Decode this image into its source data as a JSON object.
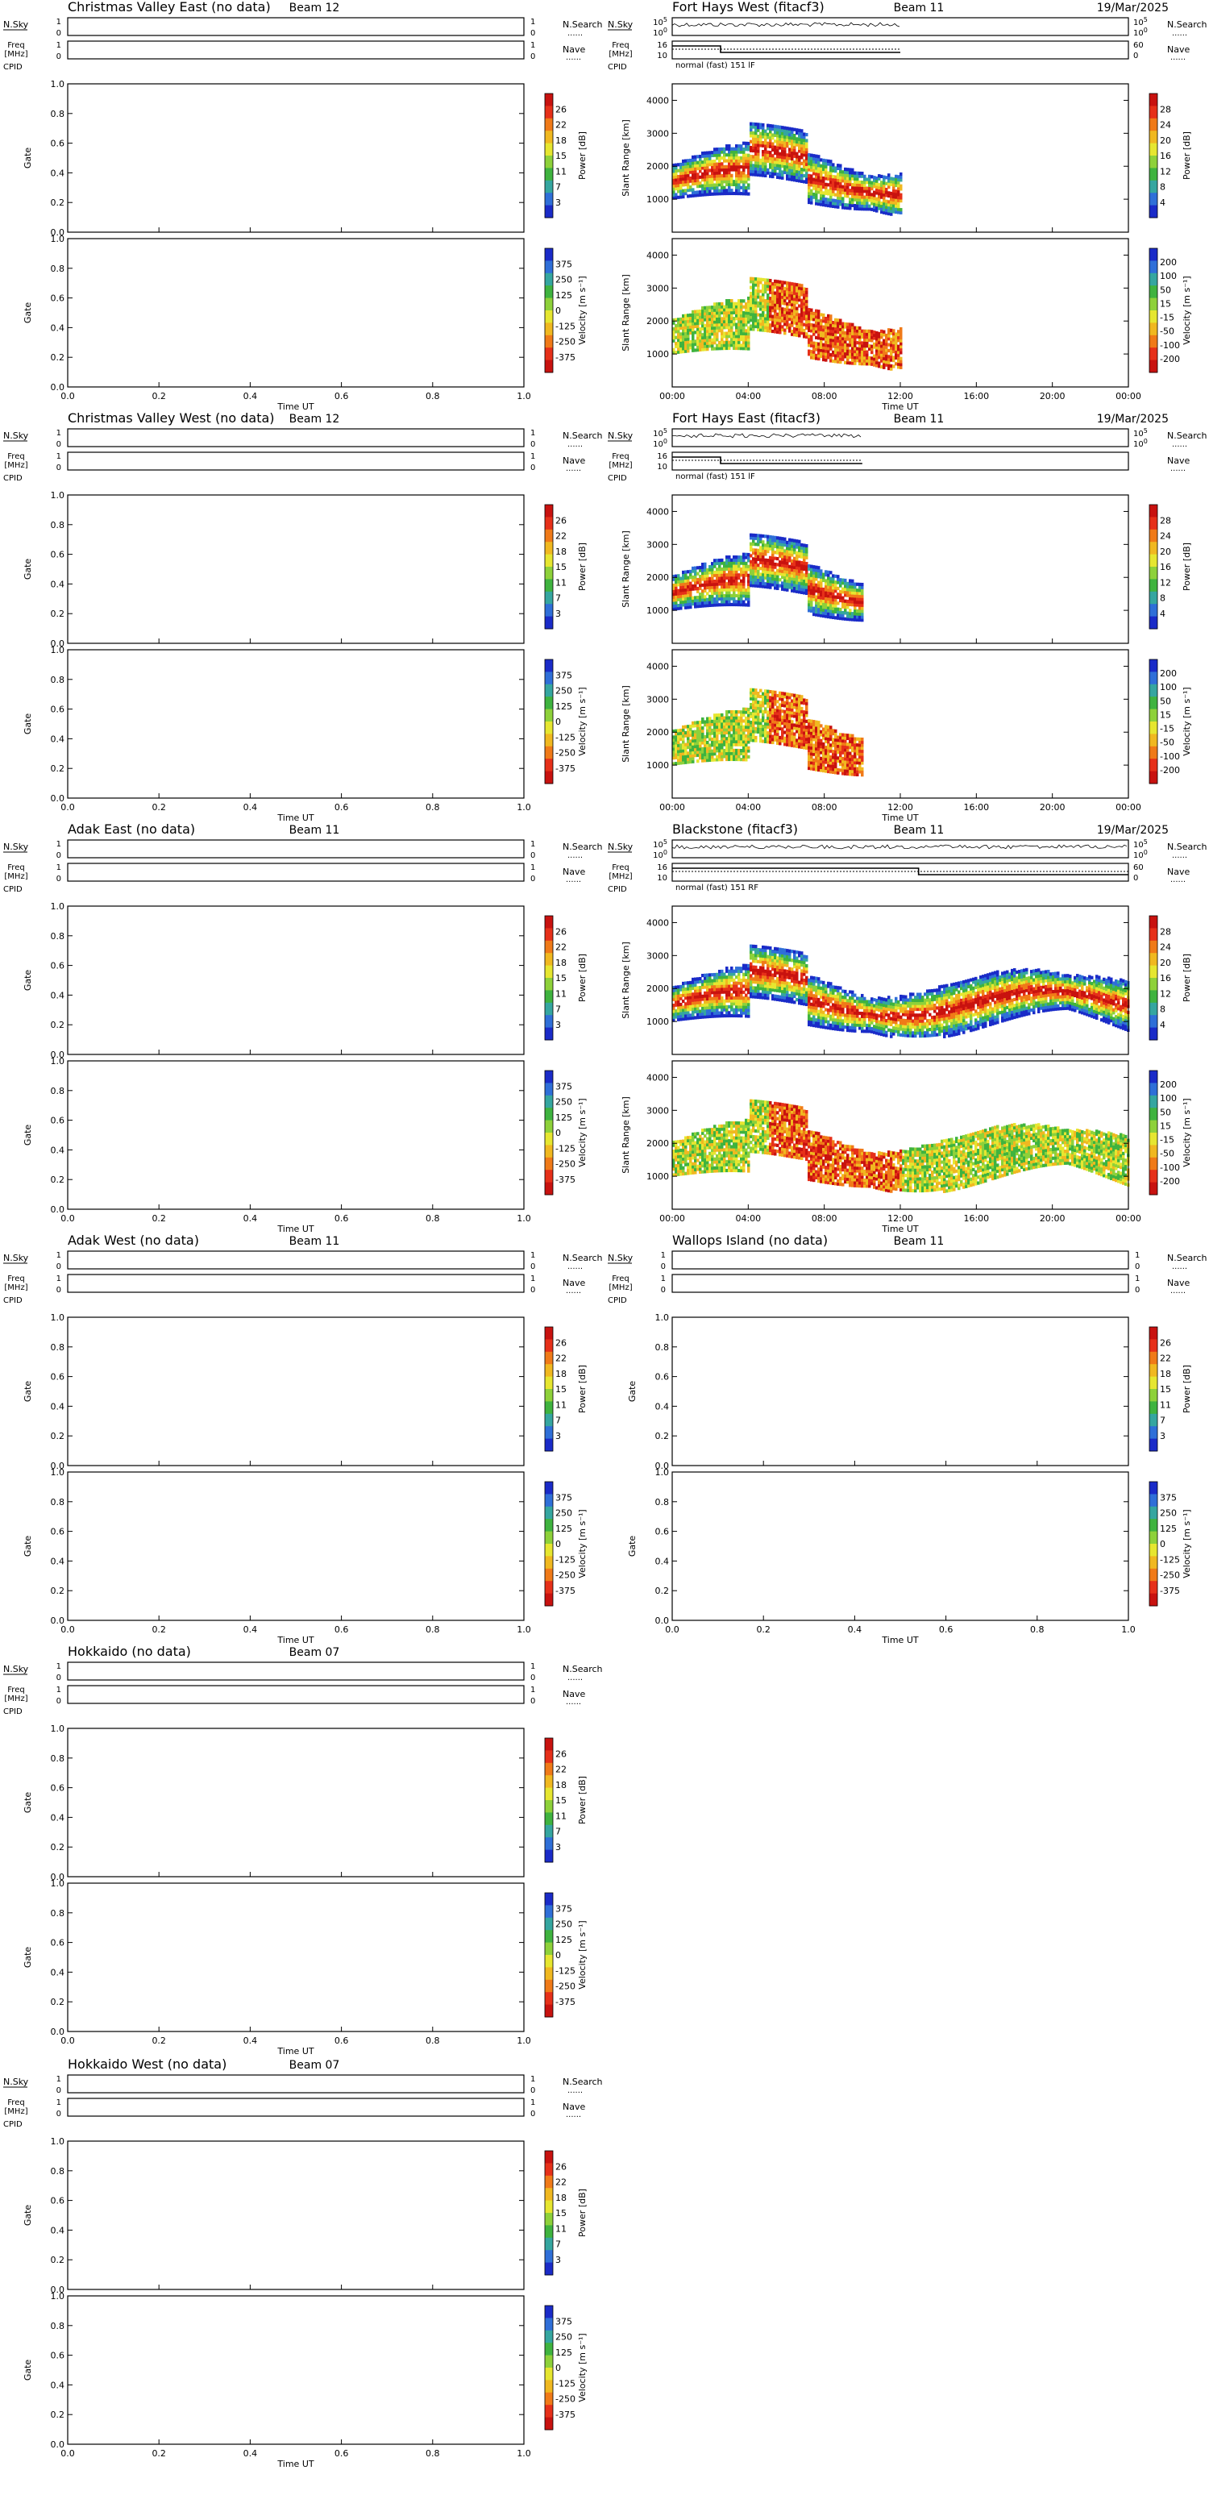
{
  "labels": {
    "nsky": [
      "N.Sky",
      "N.Search"
    ],
    "freq": [
      "Freq",
      "[MHz]",
      "Nave"
    ],
    "cpid": "CPID",
    "gate": "Gate",
    "slant": "Slant Range [km]",
    "power": "Power [dB]",
    "velocity": "Velocity [m s⁻¹]",
    "time": "Time UT",
    "dots": "......"
  },
  "colors": {
    "power": [
      "#1a2bc8",
      "#2f6fd8",
      "#35a6a0",
      "#3fb33f",
      "#8ed13a",
      "#e6e630",
      "#f0b820",
      "#f07a18",
      "#e63019",
      "#c8120f"
    ],
    "velocity": [
      "#1a2bc8",
      "#2f6fd8",
      "#35a6a0",
      "#3fb33f",
      "#8ed13a",
      "#e6e630",
      "#f0b820",
      "#f07a18",
      "#e63019",
      "#c8120f"
    ]
  },
  "chart_data": [
    {
      "type": "heatmap",
      "title": "Christmas Valley East (no data)",
      "beam": "Beam 12",
      "date": "",
      "has_data": false,
      "power_ticks": [
        "26",
        "22",
        "18",
        "15",
        "11",
        "7",
        "3"
      ],
      "velocity_ticks": [
        "375",
        "250",
        "125",
        "0",
        "-125",
        "-250",
        "-375"
      ],
      "y_ticks": [
        "0.0",
        "0.2",
        "0.4",
        "0.6",
        "0.8",
        "1.0"
      ],
      "x_ticks": [
        "0.0",
        "0.2",
        "0.4",
        "0.6",
        "0.8",
        "1.0"
      ],
      "show_xticks": true
    },
    {
      "type": "heatmap",
      "title": "Fort Hays West (fitacf3)",
      "beam": "Beam 11",
      "date": "19/Mar/2025",
      "has_data": true,
      "mode": "normal (fast) 151 lF",
      "noise_ticks": [
        "10^5",
        "10^0"
      ],
      "freq_ticks": [
        "16",
        "10"
      ],
      "nave_ticks": [
        "60",
        "0"
      ],
      "power_ticks": [
        "28",
        "24",
        "20",
        "16",
        "12",
        "8",
        "4"
      ],
      "velocity_ticks": [
        "200",
        "100",
        "50",
        "15",
        "-15",
        "-50",
        "-100",
        "-200"
      ],
      "y_ticks": [
        "1000",
        "2000",
        "3000",
        "4000"
      ],
      "x_ticks": [
        "00:00",
        "04:00",
        "08:00",
        "12:00",
        "16:00",
        "20:00",
        "00:00"
      ],
      "show_xticks": true,
      "data_end_hour": 12
    },
    {
      "type": "heatmap",
      "title": "Christmas Valley West (no data)",
      "beam": "Beam 12",
      "date": "",
      "has_data": false,
      "power_ticks": [
        "26",
        "22",
        "18",
        "15",
        "11",
        "7",
        "3"
      ],
      "velocity_ticks": [
        "375",
        "250",
        "125",
        "0",
        "-125",
        "-250",
        "-375"
      ],
      "y_ticks": [
        "0.0",
        "0.2",
        "0.4",
        "0.6",
        "0.8",
        "1.0"
      ],
      "x_ticks": [
        "0.0",
        "0.2",
        "0.4",
        "0.6",
        "0.8",
        "1.0"
      ],
      "show_xticks": true
    },
    {
      "type": "heatmap",
      "title": "Fort Hays East (fitacf3)",
      "beam": "Beam 11",
      "date": "19/Mar/2025",
      "has_data": true,
      "mode": "normal (fast) 151 lF",
      "noise_ticks": [
        "10^5",
        "10^0"
      ],
      "freq_ticks": [
        "16",
        "10"
      ],
      "nave_ticks": [],
      "power_ticks": [
        "28",
        "24",
        "20",
        "16",
        "12",
        "8",
        "4"
      ],
      "velocity_ticks": [
        "200",
        "100",
        "50",
        "15",
        "-15",
        "-50",
        "-100",
        "-200"
      ],
      "y_ticks": [
        "1000",
        "2000",
        "3000",
        "4000"
      ],
      "x_ticks": [
        "00:00",
        "04:00",
        "08:00",
        "12:00",
        "16:00",
        "20:00",
        "00:00"
      ],
      "show_xticks": true,
      "data_end_hour": 10
    },
    {
      "type": "heatmap",
      "title": "Adak East (no data)",
      "beam": "Beam 11",
      "date": "",
      "has_data": false,
      "power_ticks": [
        "26",
        "22",
        "18",
        "15",
        "11",
        "7",
        "3"
      ],
      "velocity_ticks": [
        "375",
        "250",
        "125",
        "0",
        "-125",
        "-250",
        "-375"
      ],
      "y_ticks": [
        "0.0",
        "0.2",
        "0.4",
        "0.6",
        "0.8",
        "1.0"
      ],
      "x_ticks": [
        "0.0",
        "0.2",
        "0.4",
        "0.6",
        "0.8",
        "1.0"
      ],
      "show_xticks": true
    },
    {
      "type": "heatmap",
      "title": "Blackstone (fitacf3)",
      "beam": "Beam 11",
      "date": "19/Mar/2025",
      "has_data": true,
      "mode": "normal (fast) 151 RF",
      "noise_ticks": [
        "10^5",
        "10^0"
      ],
      "freq_ticks": [
        "16",
        "10"
      ],
      "nave_ticks": [
        "60",
        "0"
      ],
      "power_ticks": [
        "28",
        "24",
        "20",
        "16",
        "12",
        "8",
        "4"
      ],
      "velocity_ticks": [
        "200",
        "100",
        "50",
        "15",
        "-15",
        "-50",
        "-100",
        "-200"
      ],
      "y_ticks": [
        "1000",
        "2000",
        "3000",
        "4000"
      ],
      "x_ticks": [
        "00:00",
        "04:00",
        "08:00",
        "12:00",
        "16:00",
        "20:00",
        "00:00"
      ],
      "show_xticks": true,
      "data_end_hour": 24
    },
    {
      "type": "heatmap",
      "title": "Adak West (no data)",
      "beam": "Beam 11",
      "date": "",
      "has_data": false,
      "power_ticks": [
        "26",
        "22",
        "18",
        "15",
        "11",
        "7",
        "3"
      ],
      "velocity_ticks": [
        "375",
        "250",
        "125",
        "0",
        "-125",
        "-250",
        "-375"
      ],
      "y_ticks": [
        "0.0",
        "0.2",
        "0.4",
        "0.6",
        "0.8",
        "1.0"
      ],
      "x_ticks": [
        "0.0",
        "0.2",
        "0.4",
        "0.6",
        "0.8",
        "1.0"
      ],
      "show_xticks": true
    },
    {
      "type": "heatmap",
      "title": "Wallops Island (no data)",
      "beam": "Beam 11",
      "date": "",
      "has_data": false,
      "power_ticks": [
        "26",
        "22",
        "18",
        "15",
        "11",
        "7",
        "3"
      ],
      "velocity_ticks": [
        "375",
        "250",
        "125",
        "0",
        "-125",
        "-250",
        "-375"
      ],
      "y_ticks": [
        "0.0",
        "0.2",
        "0.4",
        "0.6",
        "0.8",
        "1.0"
      ],
      "x_ticks": [
        "0.0",
        "0.2",
        "0.4",
        "0.6",
        "0.8",
        "1.0"
      ],
      "show_xticks": true
    },
    {
      "type": "heatmap",
      "title": "Hokkaido (no data)",
      "beam": "Beam 07",
      "date": "",
      "has_data": false,
      "power_ticks": [
        "26",
        "22",
        "18",
        "15",
        "11",
        "7",
        "3"
      ],
      "velocity_ticks": [
        "375",
        "250",
        "125",
        "0",
        "-125",
        "-250",
        "-375"
      ],
      "y_ticks": [
        "0.0",
        "0.2",
        "0.4",
        "0.6",
        "0.8",
        "1.0"
      ],
      "x_ticks": [
        "0.0",
        "0.2",
        "0.4",
        "0.6",
        "0.8",
        "1.0"
      ],
      "show_xticks": true
    },
    null,
    {
      "type": "heatmap",
      "title": "Hokkaido West (no data)",
      "beam": "Beam 07",
      "date": "",
      "has_data": false,
      "power_ticks": [
        "26",
        "22",
        "18",
        "15",
        "11",
        "7",
        "3"
      ],
      "velocity_ticks": [
        "375",
        "250",
        "125",
        "0",
        "-125",
        "-250",
        "-375"
      ],
      "y_ticks": [
        "0.0",
        "0.2",
        "0.4",
        "0.6",
        "0.8",
        "1.0"
      ],
      "x_ticks": [
        "0.0",
        "0.2",
        "0.4",
        "0.6",
        "0.8",
        "1.0"
      ],
      "show_xticks": true
    }
  ]
}
